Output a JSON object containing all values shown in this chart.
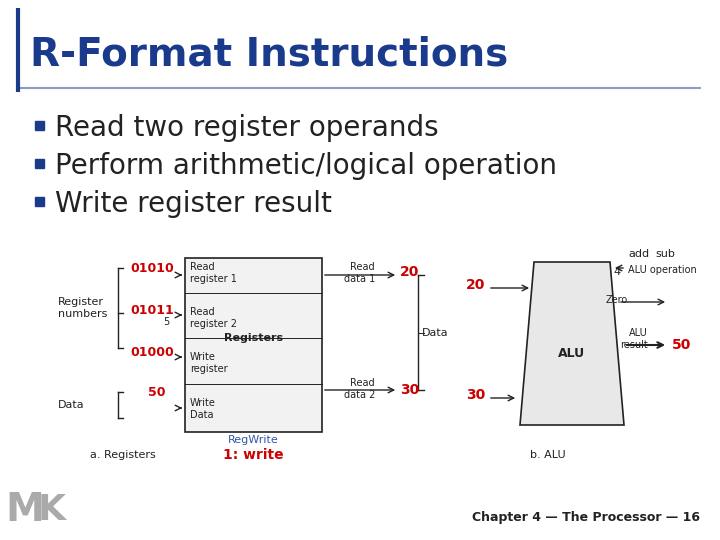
{
  "title": "R-Format Instructions",
  "title_color": "#1a3a8c",
  "title_fontsize": 28,
  "bullet_color": "#1a3a8c",
  "bullet_points": [
    "Read two register operands",
    "Perform arithmetic/logical operation",
    "Write register result"
  ],
  "bullet_fontsize": 20,
  "accent_line_color": "#1a3a8c",
  "background_color": "#ffffff",
  "red_color": "#cc0000",
  "blue_color": "#3355aa",
  "dark_color": "#222222",
  "gray_color": "#888888",
  "footer_text": "Chapter 4 — The Processor — 16",
  "label_a": "a. Registers",
  "label_b": "b. ALU",
  "label_write": "1: write",
  "label_regwrite": "RegWrite"
}
